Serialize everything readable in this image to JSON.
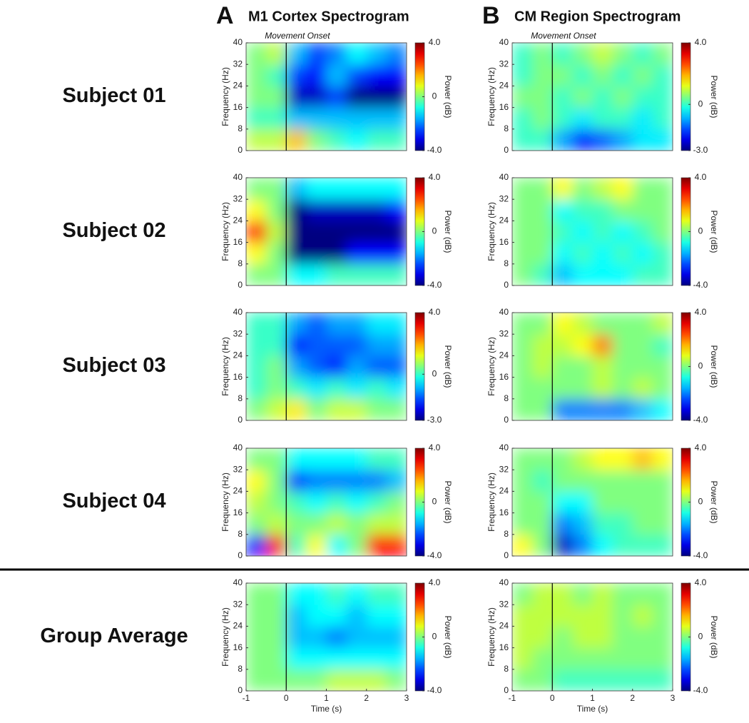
{
  "panels": [
    {
      "letter": "A",
      "title": "M1 Cortex Spectrogram"
    },
    {
      "letter": "B",
      "title": "CM Region Spectrogram"
    }
  ],
  "rows": [
    "Subject 01",
    "Subject 02",
    "Subject 03",
    "Subject 04",
    "Group Average"
  ],
  "chart_data": [
    {
      "type": "heatmap",
      "annotation": "Movement Onset",
      "event_x": 0,
      "y_label": "Frequency (Hz)",
      "colorbar_label": "Power (dB)",
      "xlim": [
        -1,
        3
      ],
      "ylim": [
        0,
        40
      ],
      "yticks": [
        0,
        8,
        16,
        24,
        32,
        40
      ],
      "clim": [
        -4,
        4
      ],
      "cticks": [
        {
          "value": 4,
          "label": "4.0"
        },
        0,
        {
          "value": -4,
          "label": "-4.0"
        }
      ],
      "x": [
        -0.75,
        -0.25,
        0.25,
        0.75,
        1.25,
        1.75,
        2.25,
        2.75
      ],
      "y": [
        4,
        12,
        20,
        28,
        36
      ],
      "z": [
        [
          0.5,
          0.5,
          1.5,
          0,
          -0.5,
          -1,
          -0.5,
          -0.5
        ],
        [
          -0.5,
          -0.5,
          -1.5,
          -1.5,
          -1.5,
          -1.5,
          -1.5,
          -1.5
        ],
        [
          0,
          0,
          -3.5,
          -3.5,
          -2.5,
          -4,
          -4,
          -4
        ],
        [
          0,
          -0.5,
          -2.5,
          -3,
          -1.5,
          -2.5,
          -3,
          -3
        ],
        [
          0,
          0.5,
          -1.5,
          -2.5,
          -2,
          -1,
          -1.5,
          -2
        ]
      ]
    },
    {
      "type": "heatmap",
      "annotation": "Movement Onset",
      "event_x": 0,
      "y_label": "Frequency (Hz)",
      "colorbar_label": "Power (dB)",
      "xlim": [
        -1,
        3
      ],
      "ylim": [
        0,
        40
      ],
      "yticks": [
        0,
        8,
        16,
        24,
        32,
        40
      ],
      "clim": [
        -3,
        4
      ],
      "cticks": [
        {
          "value": 4,
          "label": "4.0"
        },
        0,
        {
          "value": -3,
          "label": "-3.0"
        }
      ],
      "x": [
        -0.75,
        -0.25,
        0.25,
        0.75,
        1.25,
        1.75,
        2.25,
        2.75
      ],
      "y": [
        4,
        12,
        20,
        28,
        36
      ],
      "z": [
        [
          0,
          0,
          -1,
          -2,
          -1.5,
          -1,
          -0.5,
          -0.5
        ],
        [
          0,
          0.5,
          0,
          -0.5,
          0,
          0,
          -0.5,
          0
        ],
        [
          0.5,
          0.5,
          0,
          0.5,
          0,
          0.5,
          0,
          0
        ],
        [
          0,
          0.5,
          0.5,
          0,
          0.5,
          0,
          0.5,
          0
        ],
        [
          0,
          0.5,
          0,
          0.5,
          1,
          0.5,
          0,
          0.5
        ]
      ]
    },
    {
      "type": "heatmap",
      "event_x": 0,
      "y_label": "Frequency (Hz)",
      "colorbar_label": "Power (dB)",
      "xlim": [
        -1,
        3
      ],
      "ylim": [
        0,
        40
      ],
      "yticks": [
        0,
        8,
        16,
        24,
        32,
        40
      ],
      "clim": [
        -4,
        4
      ],
      "cticks": [
        {
          "value": 4,
          "label": "4.0"
        },
        0,
        {
          "value": -4,
          "label": "-4.0"
        }
      ],
      "x": [
        -0.75,
        -0.25,
        0.25,
        0.75,
        1.25,
        1.75,
        2.25,
        2.75
      ],
      "y": [
        4,
        12,
        20,
        28,
        36
      ],
      "z": [
        [
          0,
          0,
          -1,
          -1,
          -0.5,
          -0.5,
          -0.5,
          -0.5
        ],
        [
          1,
          0,
          -4,
          -4,
          -4,
          -3,
          -3,
          -3
        ],
        [
          3,
          0.5,
          -4,
          -4,
          -4,
          -4,
          -4,
          -4
        ],
        [
          1,
          0,
          -4,
          -3.5,
          -3.5,
          -3.5,
          -3.5,
          -3
        ],
        [
          0,
          0,
          -1.5,
          -1,
          -1,
          -1,
          -1,
          -1
        ]
      ]
    },
    {
      "type": "heatmap",
      "event_x": 0,
      "y_label": "Frequency (Hz)",
      "colorbar_label": "Power (dB)",
      "xlim": [
        -1,
        3
      ],
      "ylim": [
        0,
        40
      ],
      "yticks": [
        0,
        8,
        16,
        24,
        32,
        40
      ],
      "clim": [
        -4,
        4
      ],
      "cticks": [
        {
          "value": 4,
          "label": "4.0"
        },
        0,
        {
          "value": -4,
          "label": "-4.0"
        }
      ],
      "x": [
        -0.75,
        -0.25,
        0.25,
        0.75,
        1.25,
        1.75,
        2.25,
        2.75
      ],
      "y": [
        4,
        12,
        20,
        28,
        36
      ],
      "z": [
        [
          0,
          -0.5,
          -1.5,
          -1,
          -1,
          -1,
          -0.5,
          -0.5
        ],
        [
          0,
          0,
          -1,
          -0.5,
          -1,
          -0.5,
          -1,
          -0.5
        ],
        [
          0,
          0,
          -0.5,
          -1,
          -0.5,
          -1,
          -0.5,
          0
        ],
        [
          0,
          0,
          -1,
          -0.5,
          -0.5,
          0,
          0,
          0
        ],
        [
          0,
          0,
          1,
          0,
          0.5,
          1,
          0,
          0
        ]
      ]
    },
    {
      "type": "heatmap",
      "event_x": 0,
      "y_label": "Frequency (Hz)",
      "colorbar_label": "Power (dB)",
      "xlim": [
        -1,
        3
      ],
      "ylim": [
        0,
        40
      ],
      "yticks": [
        0,
        8,
        16,
        24,
        32,
        40
      ],
      "clim": [
        -3,
        4
      ],
      "cticks": [
        {
          "value": 4,
          "label": "4.0"
        },
        0,
        {
          "value": -3,
          "label": "-3.0"
        }
      ],
      "x": [
        -0.75,
        -0.25,
        0.25,
        0.75,
        1.25,
        1.75,
        2.25,
        2.75
      ],
      "y": [
        4,
        12,
        20,
        28,
        36
      ],
      "z": [
        [
          0.5,
          1,
          1.5,
          0.5,
          1,
          1,
          0.5,
          0.5
        ],
        [
          0,
          0.5,
          0,
          -0.5,
          0,
          -0.5,
          0,
          -0.5
        ],
        [
          0,
          0.5,
          -1,
          -1.5,
          -2,
          -1,
          -1.5,
          -1.5
        ],
        [
          0,
          0,
          -2,
          -1.5,
          -1.5,
          -1.5,
          -1,
          -1
        ],
        [
          0,
          0,
          -1,
          -1.5,
          -1,
          -1,
          -0.5,
          -0.5
        ]
      ]
    },
    {
      "type": "heatmap",
      "event_x": 0,
      "y_label": "Frequency (Hz)",
      "colorbar_label": "Power (dB)",
      "xlim": [
        -1,
        3
      ],
      "ylim": [
        0,
        40
      ],
      "yticks": [
        0,
        8,
        16,
        24,
        32,
        40
      ],
      "clim": [
        -4,
        4
      ],
      "cticks": [
        {
          "value": 4,
          "label": "4.0"
        },
        0,
        {
          "value": -4,
          "label": "-4.0"
        }
      ],
      "x": [
        -0.75,
        -0.25,
        0.25,
        0.75,
        1.25,
        1.75,
        2.25,
        2.75
      ],
      "y": [
        4,
        12,
        20,
        28,
        36
      ],
      "z": [
        [
          0,
          0,
          -2,
          -2,
          -2,
          -2,
          -1.5,
          -1
        ],
        [
          0,
          0,
          0,
          0,
          0.5,
          0,
          0.5,
          0
        ],
        [
          0,
          0.5,
          0,
          0,
          0.5,
          0,
          0,
          0
        ],
        [
          0,
          0.5,
          0.5,
          1,
          2,
          0,
          0,
          -0.5
        ],
        [
          0,
          0,
          1,
          0.5,
          0,
          0,
          0,
          0.5
        ]
      ]
    },
    {
      "type": "heatmap",
      "event_x": 0,
      "y_label": "Frequency (Hz)",
      "colorbar_label": "Power (dB)",
      "xlim": [
        -1,
        3
      ],
      "ylim": [
        0,
        40
      ],
      "yticks": [
        0,
        8,
        16,
        24,
        32,
        40
      ],
      "clim": [
        -4,
        4
      ],
      "cticks": [
        {
          "value": 4,
          "label": "4.0"
        },
        0,
        {
          "value": -4,
          "label": "-4.0"
        }
      ],
      "x": [
        -0.75,
        -0.25,
        0.25,
        0.75,
        1.25,
        1.75,
        2.25,
        2.75
      ],
      "y": [
        4,
        12,
        20,
        28,
        36
      ],
      "z": [
        [
          -3,
          3,
          -0.5,
          1,
          -1,
          0,
          3,
          3
        ],
        [
          0,
          0.5,
          0,
          0,
          0.5,
          0,
          0.5,
          0.5
        ],
        [
          0.5,
          0,
          -0.5,
          -1,
          -0.5,
          -1,
          -0.5,
          0
        ],
        [
          1,
          0,
          -2.5,
          -2,
          -2,
          -2,
          -2,
          -1.5
        ],
        [
          0,
          0,
          -1,
          -1,
          -1,
          -1,
          -0.5,
          -0.5
        ]
      ]
    },
    {
      "type": "heatmap",
      "event_x": 0,
      "y_label": "Frequency (Hz)",
      "colorbar_label": "Power (dB)",
      "xlim": [
        -1,
        3
      ],
      "ylim": [
        0,
        40
      ],
      "yticks": [
        0,
        8,
        16,
        24,
        32,
        40
      ],
      "clim": [
        -4,
        4
      ],
      "cticks": [
        {
          "value": 4,
          "label": "4.0"
        },
        0,
        {
          "value": -4,
          "label": "-4.0"
        }
      ],
      "x": [
        -0.75,
        -0.25,
        0.25,
        0.75,
        1.25,
        1.75,
        2.25,
        2.75
      ],
      "y": [
        4,
        12,
        20,
        28,
        36
      ],
      "z": [
        [
          1,
          0,
          -3.5,
          -2,
          -1,
          -0.5,
          -0.5,
          -0.5
        ],
        [
          0,
          0,
          -2,
          -1.5,
          -0.5,
          -0.5,
          0,
          0
        ],
        [
          0,
          0,
          -1,
          -1,
          0,
          0,
          0,
          0
        ],
        [
          0,
          -0.5,
          0,
          0,
          0,
          0,
          0,
          0
        ],
        [
          0,
          0,
          0,
          0.5,
          1,
          1,
          1.5,
          1
        ]
      ]
    },
    {
      "type": "heatmap",
      "event_x": 0,
      "x_label": "Time (s)",
      "y_label": "Frequency (Hz)",
      "colorbar_label": "Power (dB)",
      "xlim": [
        -1,
        3
      ],
      "xticks": [
        -1,
        0,
        1,
        2,
        3
      ],
      "ylim": [
        0,
        40
      ],
      "yticks": [
        0,
        8,
        16,
        24,
        32,
        40
      ],
      "clim": [
        -4,
        4
      ],
      "cticks": [
        {
          "value": 4,
          "label": "4.0"
        },
        0,
        {
          "value": -4,
          "label": "-4.0"
        }
      ],
      "x": [
        -0.75,
        -0.25,
        0.25,
        0.75,
        1.25,
        1.75,
        2.25,
        2.75
      ],
      "y": [
        4,
        12,
        20,
        28,
        36
      ],
      "z": [
        [
          0,
          0,
          0,
          0,
          0.5,
          0.5,
          0.5,
          0
        ],
        [
          0,
          0,
          -1,
          -1,
          -1,
          -1,
          -1,
          -1
        ],
        [
          0,
          0,
          -1.5,
          -1.5,
          -2,
          -1.5,
          -1.5,
          -1.5
        ],
        [
          0,
          0,
          -1.5,
          -1,
          -1,
          -1.5,
          -1,
          -1
        ],
        [
          0,
          0,
          -1,
          -1,
          -0.5,
          -1,
          -0.5,
          -0.5
        ]
      ]
    },
    {
      "type": "heatmap",
      "event_x": 0,
      "x_label": "Time (s)",
      "y_label": "Frequency (Hz)",
      "colorbar_label": "Power (dB)",
      "xlim": [
        -1,
        3
      ],
      "xticks": [
        -1,
        0,
        1,
        2,
        3
      ],
      "ylim": [
        0,
        40
      ],
      "yticks": [
        0,
        8,
        16,
        24,
        32,
        40
      ],
      "clim": [
        -4,
        4
      ],
      "cticks": [
        {
          "value": 4,
          "label": "4.0"
        },
        0,
        {
          "value": -4,
          "label": "-4.0"
        }
      ],
      "x": [
        -0.75,
        -0.25,
        0.25,
        0.75,
        1.25,
        1.75,
        2.25,
        2.75
      ],
      "y": [
        4,
        12,
        20,
        28,
        36
      ],
      "z": [
        [
          0,
          0,
          -0.5,
          -0.5,
          -0.5,
          -0.5,
          -0.5,
          -0.5
        ],
        [
          0.5,
          0,
          0,
          0,
          0,
          0,
          0,
          0
        ],
        [
          0.5,
          0.5,
          0,
          0.5,
          0.5,
          0,
          0,
          0
        ],
        [
          0.5,
          0.5,
          0.5,
          0.5,
          0.5,
          0,
          0.5,
          0
        ],
        [
          0,
          0.5,
          0.5,
          0,
          0.5,
          0,
          0,
          0
        ]
      ]
    }
  ]
}
